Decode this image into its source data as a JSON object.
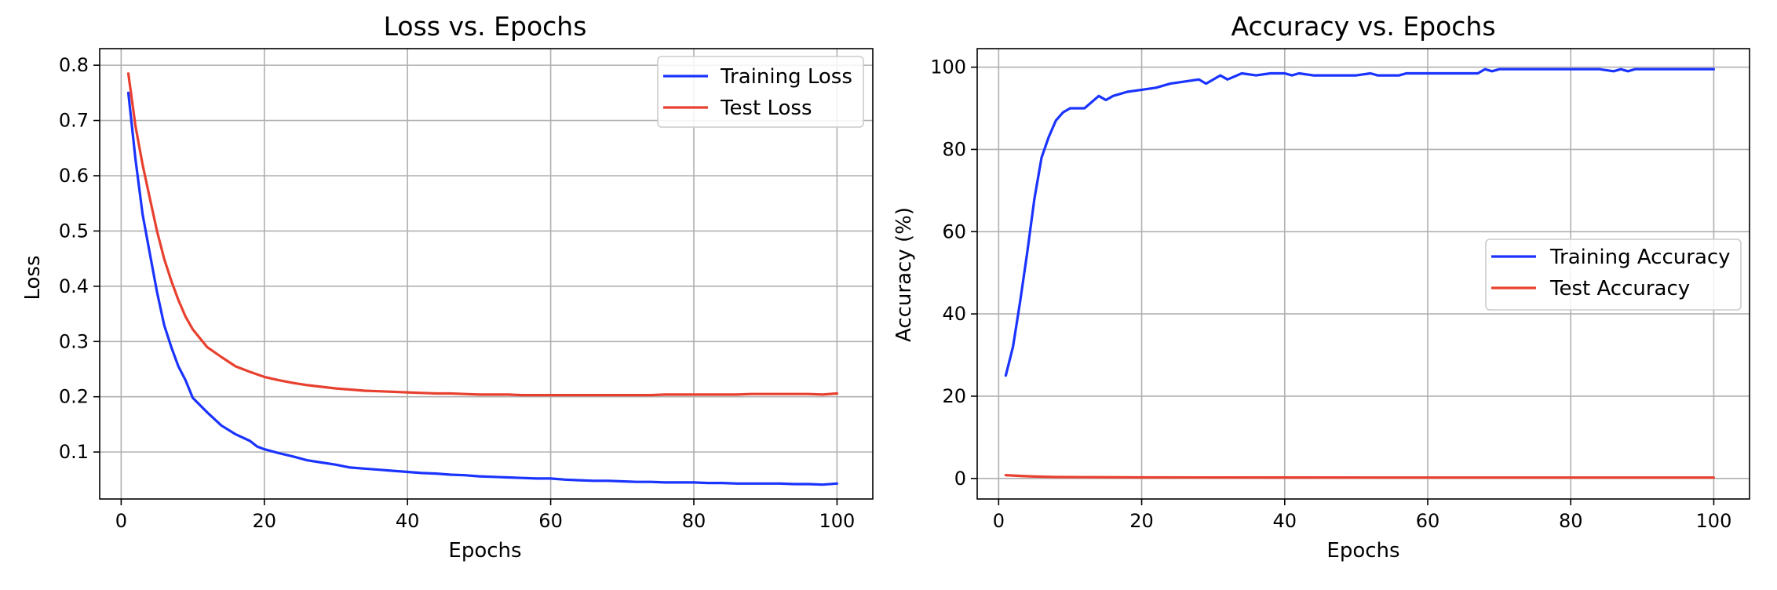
{
  "colors": {
    "training": "#1a33ff",
    "test": "#e8402f"
  },
  "chart_data": [
    {
      "type": "line",
      "title": "Loss vs. Epochs",
      "xlabel": "Epochs",
      "ylabel": "Loss",
      "xlim": [
        -3,
        105
      ],
      "ylim": [
        0.015,
        0.83
      ],
      "xticks": [
        0,
        20,
        40,
        60,
        80,
        100
      ],
      "yticks": [
        0.1,
        0.2,
        0.3,
        0.4,
        0.5,
        0.6,
        0.7,
        0.8
      ],
      "ytick_labels": [
        "0.1",
        "0.2",
        "0.3",
        "0.4",
        "0.5",
        "0.6",
        "0.7",
        "0.8"
      ],
      "grid": true,
      "legend_position": "top-right",
      "series": [
        {
          "name": "Training Loss",
          "color": "#1a33ff",
          "points": [
            [
              1,
              0.75
            ],
            [
              2,
              0.63
            ],
            [
              3,
              0.53
            ],
            [
              4,
              0.46
            ],
            [
              5,
              0.39
            ],
            [
              6,
              0.33
            ],
            [
              7,
              0.29
            ],
            [
              8,
              0.255
            ],
            [
              9,
              0.23
            ],
            [
              10,
              0.198
            ],
            [
              12,
              0.172
            ],
            [
              14,
              0.148
            ],
            [
              16,
              0.132
            ],
            [
              18,
              0.12
            ],
            [
              19,
              0.11
            ],
            [
              20,
              0.105
            ],
            [
              22,
              0.098
            ],
            [
              24,
              0.092
            ],
            [
              26,
              0.085
            ],
            [
              28,
              0.081
            ],
            [
              30,
              0.077
            ],
            [
              32,
              0.072
            ],
            [
              34,
              0.07
            ],
            [
              36,
              0.068
            ],
            [
              38,
              0.066
            ],
            [
              40,
              0.064
            ],
            [
              42,
              0.062
            ],
            [
              44,
              0.061
            ],
            [
              46,
              0.059
            ],
            [
              48,
              0.058
            ],
            [
              50,
              0.056
            ],
            [
              52,
              0.055
            ],
            [
              54,
              0.054
            ],
            [
              56,
              0.053
            ],
            [
              58,
              0.052
            ],
            [
              60,
              0.052
            ],
            [
              62,
              0.05
            ],
            [
              64,
              0.049
            ],
            [
              66,
              0.048
            ],
            [
              68,
              0.048
            ],
            [
              70,
              0.047
            ],
            [
              72,
              0.046
            ],
            [
              74,
              0.046
            ],
            [
              76,
              0.045
            ],
            [
              78,
              0.045
            ],
            [
              80,
              0.045
            ],
            [
              82,
              0.044
            ],
            [
              84,
              0.044
            ],
            [
              86,
              0.043
            ],
            [
              88,
              0.043
            ],
            [
              90,
              0.043
            ],
            [
              92,
              0.043
            ],
            [
              94,
              0.042
            ],
            [
              96,
              0.042
            ],
            [
              98,
              0.041
            ],
            [
              100,
              0.043
            ]
          ]
        },
        {
          "name": "Test Loss",
          "color": "#e8402f",
          "points": [
            [
              1,
              0.785
            ],
            [
              2,
              0.69
            ],
            [
              3,
              0.62
            ],
            [
              4,
              0.56
            ],
            [
              5,
              0.5
            ],
            [
              6,
              0.45
            ],
            [
              7,
              0.41
            ],
            [
              8,
              0.375
            ],
            [
              9,
              0.345
            ],
            [
              10,
              0.322
            ],
            [
              12,
              0.29
            ],
            [
              14,
              0.272
            ],
            [
              16,
              0.255
            ],
            [
              18,
              0.245
            ],
            [
              20,
              0.236
            ],
            [
              22,
              0.23
            ],
            [
              24,
              0.225
            ],
            [
              26,
              0.221
            ],
            [
              28,
              0.218
            ],
            [
              30,
              0.215
            ],
            [
              32,
              0.213
            ],
            [
              34,
              0.211
            ],
            [
              36,
              0.21
            ],
            [
              38,
              0.209
            ],
            [
              40,
              0.208
            ],
            [
              42,
              0.207
            ],
            [
              44,
              0.206
            ],
            [
              46,
              0.206
            ],
            [
              48,
              0.205
            ],
            [
              50,
              0.204
            ],
            [
              52,
              0.204
            ],
            [
              54,
              0.204
            ],
            [
              56,
              0.203
            ],
            [
              58,
              0.203
            ],
            [
              60,
              0.203
            ],
            [
              62,
              0.203
            ],
            [
              64,
              0.203
            ],
            [
              66,
              0.203
            ],
            [
              68,
              0.203
            ],
            [
              70,
              0.203
            ],
            [
              72,
              0.203
            ],
            [
              74,
              0.203
            ],
            [
              76,
              0.204
            ],
            [
              78,
              0.204
            ],
            [
              80,
              0.204
            ],
            [
              82,
              0.204
            ],
            [
              84,
              0.204
            ],
            [
              86,
              0.204
            ],
            [
              88,
              0.205
            ],
            [
              90,
              0.205
            ],
            [
              92,
              0.205
            ],
            [
              94,
              0.205
            ],
            [
              96,
              0.205
            ],
            [
              98,
              0.204
            ],
            [
              100,
              0.206
            ]
          ]
        }
      ]
    },
    {
      "type": "line",
      "title": "Accuracy vs. Epochs",
      "xlabel": "Epochs",
      "ylabel": "Accuracy (%)",
      "xlim": [
        -3,
        105
      ],
      "ylim": [
        -5,
        104.5
      ],
      "xticks": [
        0,
        20,
        40,
        60,
        80,
        100
      ],
      "yticks": [
        0,
        20,
        40,
        60,
        80,
        100
      ],
      "ytick_labels": [
        "0",
        "20",
        "40",
        "60",
        "80",
        "100"
      ],
      "grid": true,
      "legend_position": "center-right",
      "series": [
        {
          "name": "Training Accuracy",
          "color": "#1a33ff",
          "points": [
            [
              1,
              25
            ],
            [
              2,
              32
            ],
            [
              3,
              43
            ],
            [
              4,
              55
            ],
            [
              5,
              68
            ],
            [
              6,
              78
            ],
            [
              7,
              83
            ],
            [
              8,
              87
            ],
            [
              9,
              89
            ],
            [
              10,
              90
            ],
            [
              12,
              90
            ],
            [
              14,
              93
            ],
            [
              15,
              92
            ],
            [
              16,
              93
            ],
            [
              18,
              94
            ],
            [
              20,
              94.5
            ],
            [
              22,
              95
            ],
            [
              24,
              96
            ],
            [
              26,
              96.5
            ],
            [
              28,
              97
            ],
            [
              29,
              96
            ],
            [
              31,
              98
            ],
            [
              32,
              97
            ],
            [
              34,
              98.5
            ],
            [
              36,
              98
            ],
            [
              38,
              98.5
            ],
            [
              40,
              98.5
            ],
            [
              41,
              98
            ],
            [
              42,
              98.5
            ],
            [
              44,
              98
            ],
            [
              46,
              98
            ],
            [
              48,
              98
            ],
            [
              50,
              98
            ],
            [
              52,
              98.5
            ],
            [
              53,
              98
            ],
            [
              56,
              98
            ],
            [
              57,
              98.5
            ],
            [
              60,
              98.5
            ],
            [
              64,
              98.5
            ],
            [
              67,
              98.5
            ],
            [
              68,
              99.5
            ],
            [
              69,
              99
            ],
            [
              70,
              99.5
            ],
            [
              75,
              99.5
            ],
            [
              80,
              99.5
            ],
            [
              84,
              99.5
            ],
            [
              86,
              99
            ],
            [
              87,
              99.5
            ],
            [
              88,
              99
            ],
            [
              89,
              99.5
            ],
            [
              95,
              99.5
            ],
            [
              100,
              99.5
            ]
          ]
        },
        {
          "name": "Test Accuracy",
          "color": "#e8402f",
          "points": [
            [
              1,
              0.8
            ],
            [
              3,
              0.6
            ],
            [
              5,
              0.45
            ],
            [
              8,
              0.35
            ],
            [
              12,
              0.3
            ],
            [
              20,
              0.25
            ],
            [
              40,
              0.22
            ],
            [
              60,
              0.2
            ],
            [
              80,
              0.2
            ],
            [
              100,
              0.2
            ]
          ]
        }
      ]
    }
  ]
}
